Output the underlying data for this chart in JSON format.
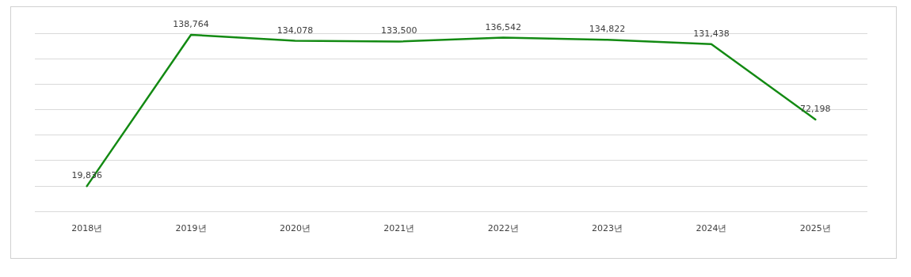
{
  "chart_data": {
    "type": "line",
    "categories": [
      "2018년",
      "2019년",
      "2020년",
      "2021년",
      "2022년",
      "2023년",
      "2024년",
      "2025년"
    ],
    "series": [
      {
        "color": "#138a13",
        "values": [
          19836,
          138764,
          134078,
          133500,
          136542,
          134822,
          131438,
          72198
        ],
        "value_labels": [
          "19,836",
          "138,764",
          "134,078",
          "133,500",
          "136,542",
          "134,822",
          "131,438",
          "72,198"
        ]
      }
    ],
    "tick_labels": "x",
    "grid": "y",
    "marker": "none",
    "line_style": "solid"
  }
}
